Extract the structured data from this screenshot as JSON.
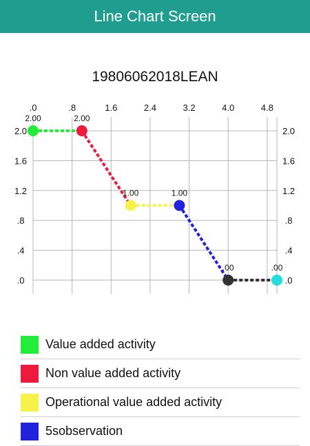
{
  "app_bar": {
    "title": "Line Chart Screen"
  },
  "chart_data": {
    "type": "line",
    "title": "19806062018LEAN",
    "x": [
      0.0,
      1.0,
      2.0,
      3.0,
      4.0,
      5.0
    ],
    "values": [
      2.0,
      2.0,
      1.0,
      1.0,
      0.0,
      0.0
    ],
    "point_labels": [
      "2.00",
      "2.00",
      "1.00",
      "1.00",
      ".00",
      ".00"
    ],
    "point_colors": [
      "#22ee3a",
      "#ee1a3e",
      "#f7f24a",
      "#2222dd",
      "#333333",
      "#22dddd"
    ],
    "segment_colors": [
      "#22ee3a",
      "#ee1a3e",
      "#f7f24a",
      "#2222dd",
      "#333333"
    ],
    "x_ticks": [
      ".0",
      ".8",
      "1.6",
      "2.4",
      "3.2",
      "4.0",
      "4.8"
    ],
    "y_ticks": [
      "2.0",
      "1.6",
      "1.2",
      ".8",
      ".4",
      ".0"
    ],
    "y_tick_values": [
      2.0,
      1.6,
      1.2,
      0.8,
      0.4,
      0.0
    ],
    "x_tick_values": [
      0.0,
      0.8,
      1.6,
      2.4,
      3.2,
      4.0,
      4.8
    ],
    "xlim": [
      0.0,
      5.0
    ],
    "ylim": [
      0.0,
      2.0
    ],
    "grid": true,
    "legend": "bottom"
  },
  "legend": {
    "items": [
      {
        "label": "Value added activity",
        "color": "#22ee3a"
      },
      {
        "label": "Non value added activity",
        "color": "#ee1a3e"
      },
      {
        "label": "Operational value added activity",
        "color": "#f7f24a"
      },
      {
        "label": "5sobservation",
        "color": "#2222dd"
      }
    ]
  }
}
